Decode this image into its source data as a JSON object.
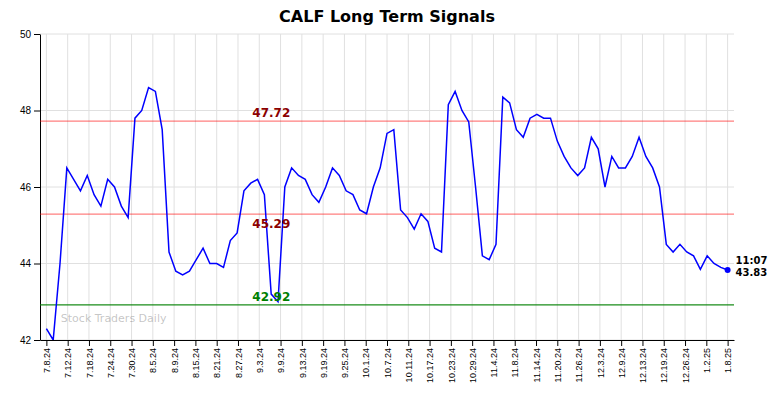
{
  "chart_data": {
    "type": "line",
    "title": "CALF Long Term Signals",
    "color": "blue",
    "x": [
      0,
      0.32,
      0.64,
      0.96,
      1.28,
      1.6,
      1.92,
      2.24,
      2.56,
      2.88,
      3.2,
      3.52,
      3.84,
      4.16,
      4.48,
      4.8,
      5.12,
      5.44,
      5.76,
      6.08,
      6.4,
      6.72,
      7.04,
      7.36,
      7.68,
      8,
      8.32,
      8.64,
      8.96,
      9.28,
      9.6,
      9.92,
      10.24,
      10.56,
      10.88,
      11.2,
      11.52,
      11.84,
      12.16,
      12.48,
      12.8,
      13.12,
      13.44,
      13.76,
      14.08,
      14.4,
      14.72,
      15.04,
      15.36,
      15.68,
      16,
      16.32,
      16.64,
      16.96,
      17.28,
      17.6,
      17.92,
      18.24,
      18.56,
      18.88,
      19.2,
      19.52,
      19.84,
      20.16,
      20.48,
      20.8,
      21.12,
      21.44,
      21.76,
      22.08,
      22.4,
      22.72,
      23.04,
      23.36,
      23.68,
      24,
      24.32,
      24.64,
      24.96,
      25.28,
      25.6,
      25.92,
      26.24,
      26.56,
      26.88,
      27.2,
      27.52,
      27.84,
      28.16,
      28.48,
      28.8,
      29.12,
      29.44,
      29.76,
      30.08,
      30.4,
      30.72,
      31.04,
      31.36,
      31.68,
      32
    ],
    "values": [
      42.3,
      42.0,
      44.0,
      46.5,
      46.2,
      45.9,
      46.3,
      45.8,
      45.5,
      46.2,
      46.0,
      45.5,
      45.2,
      47.8,
      48.0,
      48.6,
      48.5,
      47.5,
      44.3,
      43.8,
      43.7,
      43.8,
      44.1,
      44.4,
      44.0,
      44.0,
      43.9,
      44.6,
      44.8,
      45.9,
      46.1,
      46.2,
      45.8,
      43.2,
      43.0,
      46.0,
      46.5,
      46.3,
      46.2,
      45.8,
      45.6,
      46.0,
      46.5,
      46.3,
      45.9,
      45.8,
      45.4,
      45.3,
      46.0,
      46.5,
      47.4,
      47.5,
      45.4,
      45.2,
      44.9,
      45.3,
      45.1,
      44.4,
      44.3,
      48.15,
      48.5,
      48.0,
      47.7,
      46.0,
      44.2,
      44.1,
      44.5,
      48.35,
      48.2,
      47.5,
      47.3,
      47.8,
      47.9,
      47.8,
      47.8,
      47.2,
      46.8,
      46.5,
      46.3,
      46.5,
      47.3,
      47.0,
      46.0,
      46.8,
      46.5,
      46.5,
      46.8,
      47.3,
      46.8,
      46.5,
      46.0,
      44.5,
      44.3,
      44.5,
      44.3,
      44.2,
      43.85,
      44.2,
      44.0,
      43.9,
      43.83
    ],
    "xlim": [
      -0.3,
      32.3
    ],
    "xticks": [
      {
        "value": 0,
        "label": "7.8.24"
      },
      {
        "value": 1,
        "label": "7.12.24"
      },
      {
        "value": 2,
        "label": "7.18.24"
      },
      {
        "value": 3,
        "label": "7.24.24"
      },
      {
        "value": 4,
        "label": "7.30.24"
      },
      {
        "value": 5,
        "label": "8.5.24"
      },
      {
        "value": 6,
        "label": "8.9.24"
      },
      {
        "value": 7,
        "label": "8.15.24"
      },
      {
        "value": 8,
        "label": "8.21.24"
      },
      {
        "value": 9,
        "label": "8.27.24"
      },
      {
        "value": 10,
        "label": "9.3.24"
      },
      {
        "value": 11,
        "label": "9.9.24"
      },
      {
        "value": 12,
        "label": "9.13.24"
      },
      {
        "value": 13,
        "label": "9.19.24"
      },
      {
        "value": 14,
        "label": "9.25.24"
      },
      {
        "value": 15,
        "label": "10.1.24"
      },
      {
        "value": 16,
        "label": "10.7.24"
      },
      {
        "value": 17,
        "label": "10.11.24"
      },
      {
        "value": 18,
        "label": "10.17.24"
      },
      {
        "value": 19,
        "label": "10.23.24"
      },
      {
        "value": 20,
        "label": "10.29.24"
      },
      {
        "value": 21,
        "label": "11.4.24"
      },
      {
        "value": 22,
        "label": "11.8.24"
      },
      {
        "value": 23,
        "label": "11.14.24"
      },
      {
        "value": 24,
        "label": "11.20.24"
      },
      {
        "value": 25,
        "label": "11.26.24"
      },
      {
        "value": 26,
        "label": "12.3.24"
      },
      {
        "value": 27,
        "label": "12.9.24"
      },
      {
        "value": 28,
        "label": "12.13.24"
      },
      {
        "value": 29,
        "label": "12.19.24"
      },
      {
        "value": 30,
        "label": "12.26.24"
      },
      {
        "value": 31,
        "label": "1.2.25"
      },
      {
        "value": 32,
        "label": "1.8.25"
      }
    ],
    "ylim": [
      42,
      50
    ],
    "yticks": [
      42,
      44,
      46,
      48,
      50
    ],
    "grid": true,
    "reference_lines": [
      {
        "value": 47.72,
        "color": "red"
      },
      {
        "value": 45.29,
        "color": "red"
      },
      {
        "value": 42.92,
        "color": "green"
      }
    ],
    "annotations": [
      {
        "text": "47.72",
        "value": 47.72,
        "color": "darkred"
      },
      {
        "text": "45.29",
        "value": 45.29,
        "color": "darkred"
      },
      {
        "text": "42.92",
        "value": 42.92,
        "color": "green"
      }
    ],
    "last_label": {
      "time": "11:07",
      "label": "43.83"
    },
    "watermark": "Stock Traders Daily"
  }
}
